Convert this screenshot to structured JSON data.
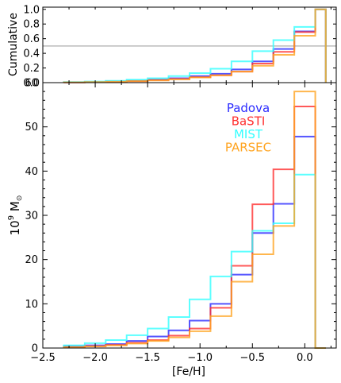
{
  "chart_data": [
    {
      "type": "line",
      "drawstyle": "step",
      "ylabel": "Cumulative",
      "xlim": [
        -2.5,
        0.3
      ],
      "ylim": [
        0,
        1.03
      ],
      "yticks": [
        "1.0",
        "0.8",
        "0.6",
        "0.4",
        "0.2",
        "0.0"
      ],
      "reference_line": {
        "y": 0.5,
        "color": "#bbbbbb"
      },
      "bin_edges": [
        -2.3,
        -2.1,
        -1.9,
        -1.7,
        -1.5,
        -1.3,
        -1.1,
        -0.9,
        -0.7,
        -0.5,
        -0.3,
        -0.1,
        0.1,
        0.2
      ],
      "series": [
        {
          "name": "Padova",
          "color": "#2b2bff",
          "values": [
            0.005,
            0.01,
            0.015,
            0.025,
            0.04,
            0.06,
            0.09,
            0.12,
            0.18,
            0.29,
            0.46,
            0.7,
            1.0
          ]
        },
        {
          "name": "BaSTI",
          "color": "#ff3030",
          "values": [
            0.003,
            0.008,
            0.012,
            0.02,
            0.035,
            0.05,
            0.075,
            0.1,
            0.15,
            0.26,
            0.42,
            0.69,
            1.0
          ]
        },
        {
          "name": "MIST",
          "color": "#33ffff",
          "values": [
            0.008,
            0.015,
            0.025,
            0.04,
            0.06,
            0.09,
            0.13,
            0.19,
            0.29,
            0.43,
            0.58,
            0.76,
            1.0
          ]
        },
        {
          "name": "PARSEC",
          "color": "#ffa420",
          "values": [
            0.004,
            0.008,
            0.012,
            0.02,
            0.03,
            0.045,
            0.07,
            0.1,
            0.15,
            0.23,
            0.38,
            0.64,
            1.0
          ]
        }
      ]
    },
    {
      "type": "line",
      "drawstyle": "step",
      "xlabel": "[Fe/H]",
      "ylabel_main": "10",
      "ylabel_exp": "9",
      "ylabel_unit": "M",
      "ylabel_sub": "⊙",
      "xlim": [
        -2.5,
        0.3
      ],
      "ylim": [
        0,
        60
      ],
      "xticks": [
        -2.5,
        -2.0,
        -1.5,
        -1.0,
        -0.5,
        0.0
      ],
      "xtick_labels": [
        "−2.5",
        "−2.0",
        "−1.5",
        "−1.0",
        "−0.5",
        "0.0"
      ],
      "yticks": [
        0,
        10,
        20,
        30,
        40,
        50,
        60
      ],
      "ytick_labels": [
        "0",
        "10",
        "20",
        "30",
        "40",
        "50",
        "60"
      ],
      "legend_position": "upper-right",
      "bin_edges": [
        -2.3,
        -2.1,
        -1.9,
        -1.7,
        -1.5,
        -1.3,
        -1.1,
        -0.9,
        -0.7,
        -0.5,
        -0.3,
        -0.1,
        0.1,
        0.2
      ],
      "series": [
        {
          "name": "Padova",
          "color": "#2b2bff",
          "values": [
            0.4,
            0.6,
            0.9,
            1.6,
            2.6,
            4.0,
            6.2,
            10.0,
            16.6,
            26.0,
            32.6,
            47.8,
            0
          ]
        },
        {
          "name": "BaSTI",
          "color": "#ff3030",
          "values": [
            0.2,
            0.4,
            0.7,
            1.2,
            1.8,
            2.8,
            4.4,
            9.1,
            18.6,
            32.5,
            40.4,
            54.6,
            0
          ]
        },
        {
          "name": "MIST",
          "color": "#33ffff",
          "values": [
            0.6,
            1.1,
            1.8,
            2.9,
            4.4,
            7.0,
            11.0,
            16.2,
            21.8,
            26.5,
            28.2,
            39.2,
            0
          ]
        },
        {
          "name": "PARSEC",
          "color": "#ffa420",
          "values": [
            0.2,
            0.4,
            0.6,
            1.0,
            1.6,
            2.4,
            3.8,
            7.2,
            15.0,
            21.2,
            27.6,
            58.0,
            0
          ]
        }
      ]
    }
  ]
}
